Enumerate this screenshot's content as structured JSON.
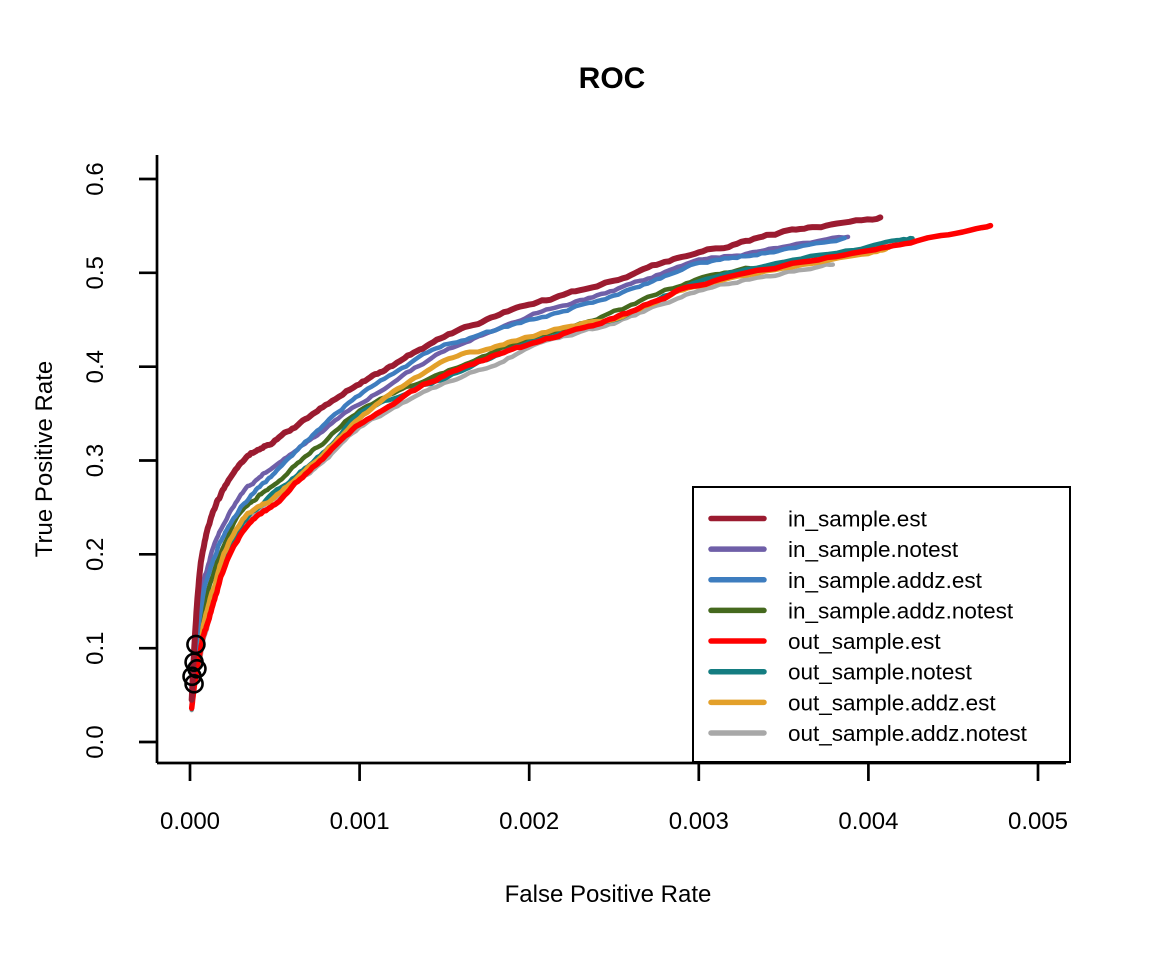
{
  "chart_data": {
    "type": "line",
    "title": "ROC",
    "xlabel": "False Positive Rate",
    "ylabel": "True Positive Rate",
    "x_ticks": [
      "0.000",
      "0.001",
      "0.002",
      "0.003",
      "0.004",
      "0.005"
    ],
    "x_tick_values": [
      0,
      0.001,
      0.002,
      0.003,
      0.004,
      0.005
    ],
    "y_ticks": [
      "0.0",
      "0.1",
      "0.2",
      "0.3",
      "0.4",
      "0.5",
      "0.6"
    ],
    "y_tick_values": [
      0,
      0.1,
      0.2,
      0.3,
      0.4,
      0.5,
      0.6
    ],
    "xlim": [
      0,
      0.005
    ],
    "ylim": [
      0,
      0.6
    ],
    "grid": false,
    "legend_position": "bottomright",
    "series": [
      {
        "name": "in_sample.est",
        "color": "#9B1B30",
        "lwd": 6,
        "points": [
          [
            1e-05,
            0.045
          ],
          [
            3e-05,
            0.115
          ],
          [
            6e-05,
            0.185
          ],
          [
            0.0001,
            0.225
          ],
          [
            0.00015,
            0.252
          ],
          [
            0.0002,
            0.27
          ],
          [
            0.0003,
            0.297
          ],
          [
            0.0004,
            0.312
          ],
          [
            0.0005,
            0.322
          ],
          [
            0.00065,
            0.34
          ],
          [
            0.0008,
            0.36
          ],
          [
            0.001,
            0.383
          ],
          [
            0.00115,
            0.396
          ],
          [
            0.0013,
            0.413
          ],
          [
            0.0015,
            0.432
          ],
          [
            0.00175,
            0.45
          ],
          [
            0.002,
            0.466
          ],
          [
            0.00225,
            0.478
          ],
          [
            0.0025,
            0.492
          ],
          [
            0.00275,
            0.508
          ],
          [
            0.003,
            0.522
          ],
          [
            0.00325,
            0.532
          ],
          [
            0.0035,
            0.543
          ],
          [
            0.00375,
            0.551
          ],
          [
            0.00407,
            0.559
          ]
        ]
      },
      {
        "name": "in_sample.notest",
        "color": "#6F5FA8",
        "lwd": 4.5,
        "points": [
          [
            1e-05,
            0.04
          ],
          [
            3e-05,
            0.1
          ],
          [
            7e-05,
            0.16
          ],
          [
            0.0001,
            0.185
          ],
          [
            0.00015,
            0.215
          ],
          [
            0.0002,
            0.235
          ],
          [
            0.0003,
            0.263
          ],
          [
            0.0004,
            0.28
          ],
          [
            0.0005,
            0.295
          ],
          [
            0.00065,
            0.315
          ],
          [
            0.0008,
            0.335
          ],
          [
            0.001,
            0.361
          ],
          [
            0.00125,
            0.39
          ],
          [
            0.0015,
            0.416
          ],
          [
            0.00175,
            0.437
          ],
          [
            0.002,
            0.455
          ],
          [
            0.00225,
            0.468
          ],
          [
            0.0025,
            0.482
          ],
          [
            0.00275,
            0.497
          ],
          [
            0.003,
            0.512
          ],
          [
            0.00325,
            0.52
          ],
          [
            0.0035,
            0.528
          ],
          [
            0.00388,
            0.538
          ]
        ]
      },
      {
        "name": "in_sample.addz.est",
        "color": "#3E7DBF",
        "lwd": 4.5,
        "points": [
          [
            1e-05,
            0.04
          ],
          [
            3e-05,
            0.09
          ],
          [
            7e-05,
            0.15
          ],
          [
            0.0001,
            0.175
          ],
          [
            0.00015,
            0.2
          ],
          [
            0.0002,
            0.222
          ],
          [
            0.0003,
            0.25
          ],
          [
            0.0004,
            0.27
          ],
          [
            0.0005,
            0.287
          ],
          [
            0.00065,
            0.313
          ],
          [
            0.0008,
            0.34
          ],
          [
            0.001,
            0.37
          ],
          [
            0.00125,
            0.398
          ],
          [
            0.0015,
            0.423
          ],
          [
            0.00175,
            0.436
          ],
          [
            0.002,
            0.448
          ],
          [
            0.00225,
            0.462
          ],
          [
            0.0025,
            0.475
          ],
          [
            0.00275,
            0.492
          ],
          [
            0.003,
            0.509
          ],
          [
            0.00325,
            0.518
          ],
          [
            0.0035,
            0.525
          ],
          [
            0.00386,
            0.535
          ]
        ]
      },
      {
        "name": "in_sample.addz.notest",
        "color": "#45691E",
        "lwd": 4.5,
        "points": [
          [
            1e-05,
            0.038
          ],
          [
            3e-05,
            0.08
          ],
          [
            7e-05,
            0.13
          ],
          [
            0.0001,
            0.155
          ],
          [
            0.00015,
            0.185
          ],
          [
            0.0002,
            0.21
          ],
          [
            0.0003,
            0.245
          ],
          [
            0.0004,
            0.262
          ],
          [
            0.0005,
            0.276
          ],
          [
            0.00065,
            0.3
          ],
          [
            0.0008,
            0.322
          ],
          [
            0.001,
            0.354
          ],
          [
            0.00125,
            0.375
          ],
          [
            0.0015,
            0.394
          ],
          [
            0.00175,
            0.412
          ],
          [
            0.002,
            0.429
          ],
          [
            0.00225,
            0.444
          ],
          [
            0.0025,
            0.458
          ],
          [
            0.00275,
            0.476
          ],
          [
            0.003,
            0.493
          ],
          [
            0.00325,
            0.502
          ],
          [
            0.0035,
            0.508
          ],
          [
            0.00369,
            0.513
          ]
        ]
      },
      {
        "name": "out_sample.est",
        "color": "#FF0000",
        "lwd": 5.5,
        "points": [
          [
            1e-05,
            0.036
          ],
          [
            3e-05,
            0.065
          ],
          [
            7e-05,
            0.105
          ],
          [
            0.0001,
            0.125
          ],
          [
            0.00015,
            0.155
          ],
          [
            0.0002,
            0.185
          ],
          [
            0.0003,
            0.222
          ],
          [
            0.0004,
            0.24
          ],
          [
            0.0005,
            0.253
          ],
          [
            0.00065,
            0.28
          ],
          [
            0.0008,
            0.305
          ],
          [
            0.001,
            0.338
          ],
          [
            0.00125,
            0.368
          ],
          [
            0.0015,
            0.391
          ],
          [
            0.00175,
            0.408
          ],
          [
            0.002,
            0.423
          ],
          [
            0.00225,
            0.438
          ],
          [
            0.0025,
            0.452
          ],
          [
            0.00275,
            0.47
          ],
          [
            0.003,
            0.487
          ],
          [
            0.0035,
            0.507
          ],
          [
            0.004,
            0.524
          ],
          [
            0.00435,
            0.536
          ],
          [
            0.00472,
            0.551
          ]
        ]
      },
      {
        "name": "out_sample.notest",
        "color": "#147D81",
        "lwd": 4.5,
        "points": [
          [
            1e-05,
            0.035
          ],
          [
            3e-05,
            0.068
          ],
          [
            7e-05,
            0.11
          ],
          [
            0.0001,
            0.132
          ],
          [
            0.00015,
            0.165
          ],
          [
            0.0002,
            0.195
          ],
          [
            0.0003,
            0.23
          ],
          [
            0.0004,
            0.25
          ],
          [
            0.0005,
            0.265
          ],
          [
            0.00065,
            0.288
          ],
          [
            0.0008,
            0.31
          ],
          [
            0.001,
            0.35
          ],
          [
            0.00125,
            0.37
          ],
          [
            0.0015,
            0.388
          ],
          [
            0.00175,
            0.407
          ],
          [
            0.002,
            0.426
          ],
          [
            0.00225,
            0.44
          ],
          [
            0.0025,
            0.452
          ],
          [
            0.00275,
            0.47
          ],
          [
            0.003,
            0.49
          ],
          [
            0.0035,
            0.512
          ],
          [
            0.004,
            0.528
          ],
          [
            0.00426,
            0.537
          ]
        ]
      },
      {
        "name": "out_sample.addz.est",
        "color": "#E3A02A",
        "lwd": 5,
        "points": [
          [
            1e-05,
            0.036
          ],
          [
            3e-05,
            0.07
          ],
          [
            7e-05,
            0.115
          ],
          [
            0.0001,
            0.14
          ],
          [
            0.00015,
            0.17
          ],
          [
            0.0002,
            0.2
          ],
          [
            0.0003,
            0.235
          ],
          [
            0.0004,
            0.25
          ],
          [
            0.0005,
            0.262
          ],
          [
            0.00065,
            0.285
          ],
          [
            0.0008,
            0.31
          ],
          [
            0.001,
            0.345
          ],
          [
            0.00125,
            0.378
          ],
          [
            0.0015,
            0.404
          ],
          [
            0.00175,
            0.419
          ],
          [
            0.002,
            0.432
          ],
          [
            0.00225,
            0.443
          ],
          [
            0.0025,
            0.453
          ],
          [
            0.00275,
            0.47
          ],
          [
            0.003,
            0.487
          ],
          [
            0.0035,
            0.506
          ],
          [
            0.004,
            0.521
          ],
          [
            0.00412,
            0.527
          ]
        ]
      },
      {
        "name": "out_sample.addz.notest",
        "color": "#A8A8A8",
        "lwd": 4.5,
        "points": [
          [
            1e-05,
            0.034
          ],
          [
            3e-05,
            0.062
          ],
          [
            7e-05,
            0.1
          ],
          [
            0.0001,
            0.122
          ],
          [
            0.00015,
            0.155
          ],
          [
            0.0002,
            0.188
          ],
          [
            0.0003,
            0.226
          ],
          [
            0.0004,
            0.246
          ],
          [
            0.0005,
            0.26
          ],
          [
            0.00065,
            0.28
          ],
          [
            0.0008,
            0.302
          ],
          [
            0.001,
            0.335
          ],
          [
            0.00125,
            0.36
          ],
          [
            0.0015,
            0.381
          ],
          [
            0.00175,
            0.4
          ],
          [
            0.002,
            0.42
          ],
          [
            0.00225,
            0.434
          ],
          [
            0.0025,
            0.446
          ],
          [
            0.00275,
            0.464
          ],
          [
            0.003,
            0.482
          ],
          [
            0.00325,
            0.492
          ],
          [
            0.0035,
            0.5
          ],
          [
            0.00379,
            0.51
          ]
        ]
      }
    ],
    "markers": {
      "shape": "open-circle",
      "color": "#000000",
      "points": [
        [
          3.5e-05,
          0.104
        ],
        [
          2.4e-05,
          0.085
        ],
        [
          4.1e-05,
          0.078
        ],
        [
          1.2e-05,
          0.07
        ],
        [
          2.4e-05,
          0.062
        ]
      ]
    }
  }
}
